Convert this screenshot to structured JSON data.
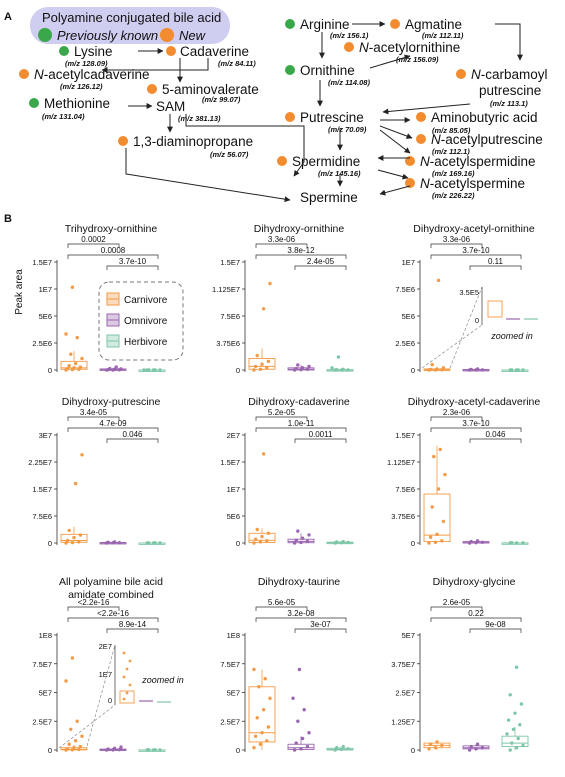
{
  "panel_a": {
    "letter": "A",
    "legend": {
      "title": "Polyamine conjugated bile acid",
      "known_label": "Previously known",
      "new_label": "New",
      "known_color": "#3aa84a",
      "new_color": "#f28c2e"
    },
    "nodes": [
      {
        "id": "lysine",
        "name": "Lysine",
        "mz": "(m/z 128.09)",
        "status": "known"
      },
      {
        "id": "cadaverine",
        "name": "Cadaverine",
        "mz": "(m/z 84.11)",
        "status": "new"
      },
      {
        "id": "acetylcadaverine",
        "name": "N-acetylcadaverine",
        "mz": "(m/z 126.12)",
        "status": "new"
      },
      {
        "id": "aminovalerate",
        "name": "5-aminovalerate",
        "mz": "(m/z 99.07)",
        "status": "new"
      },
      {
        "id": "methionine",
        "name": "Methionine",
        "mz": "(m/z 131.04)",
        "status": "known"
      },
      {
        "id": "sam",
        "name": "SAM",
        "mz": "(m/z 381.13)",
        "status": "none"
      },
      {
        "id": "diaminopropane",
        "name": "1,3-diaminopropane",
        "mz": "(m/z 56.07)",
        "status": "new"
      },
      {
        "id": "arginine",
        "name": "Arginine",
        "mz": "(m/z 156.1)",
        "status": "known"
      },
      {
        "id": "agmatine",
        "name": "Agmatine",
        "mz": "(m/z 112.11)",
        "status": "new"
      },
      {
        "id": "acetylornithine",
        "name": "N-acetylornithine",
        "mz": "(m/z 156.09)",
        "status": "new"
      },
      {
        "id": "ornithine",
        "name": "Ornithine",
        "mz": "(m/z 114.08)",
        "status": "known"
      },
      {
        "id": "carbamoyl",
        "name": "N-carbamoyl",
        "name2": "putrescine",
        "mz": "(m/z 113.1)",
        "status": "new"
      },
      {
        "id": "putrescine",
        "name": "Putrescine",
        "mz": "(m/z 70.09)",
        "status": "new"
      },
      {
        "id": "aminobutyric",
        "name": "Aminobutyric acid",
        "mz": "(m/z 85.05)",
        "status": "new"
      },
      {
        "id": "acetylputrescine",
        "name": "N-acetylputrescine",
        "mz": "(m/z 112.1)",
        "status": "new"
      },
      {
        "id": "spermidine",
        "name": "Spermidine",
        "mz": "(m/z 145.16)",
        "status": "new"
      },
      {
        "id": "acetylspermidine",
        "name": "N-acetylspermidine",
        "mz": "(m/z 169.16)",
        "status": "new"
      },
      {
        "id": "spermine",
        "name": "Spermine",
        "mz": "(m/z 226.22)",
        "status": "none"
      },
      {
        "id": "acetylspermine",
        "name": "N-acetylspermine",
        "mz": "(m/z 226.22)",
        "status": "new"
      }
    ]
  },
  "panel_b": {
    "letter": "B",
    "ylabel": "Peak area",
    "legend": [
      {
        "name": "Carnivore",
        "color": "#f39a45"
      },
      {
        "name": "Omnivore",
        "color": "#9b66b0"
      },
      {
        "name": "Herbivore",
        "color": "#7ec6a8"
      }
    ],
    "zoom_label": "zoomed in"
  },
  "chart_data": [
    {
      "type": "box",
      "title": "Trihydroxy-ornithine",
      "yticks": [
        "0",
        "2.5E6",
        "5E6",
        "1E7",
        "1.5E7"
      ],
      "ylim": [
        0,
        15000000
      ],
      "pvalues": [
        "0.0002",
        "0.0008",
        "3.7e-10"
      ],
      "series": [
        {
          "name": "Carnivore",
          "q1": 100000,
          "median": 300000,
          "q3": 1200000,
          "whisker_low": 0,
          "whisker_high": 2600000,
          "points": [
            0,
            50000,
            100000,
            200000,
            300000,
            400000,
            600000,
            900000,
            1600000,
            2200000,
            4500000,
            5000000,
            11500000
          ]
        },
        {
          "name": "Omnivore",
          "q1": 0,
          "median": 30000,
          "q3": 150000,
          "whisker_low": 0,
          "whisker_high": 300000,
          "points": [
            0,
            0,
            20000,
            50000,
            100000,
            150000,
            200000,
            400000
          ]
        },
        {
          "name": "Herbivore",
          "q1": 0,
          "median": 0,
          "q3": 0,
          "whisker_low": 0,
          "whisker_high": 0,
          "points": [
            0,
            0,
            0,
            0,
            0,
            0
          ]
        }
      ]
    },
    {
      "type": "box",
      "title": "Dihydroxy-ornithine",
      "yticks": [
        "0",
        "3.75E6",
        "7.5E6",
        "1.125E7",
        "1.5E7"
      ],
      "ylim": [
        0,
        15000000
      ],
      "pvalues": [
        "3.3e-06",
        "3.8e-12",
        "2.4e-05"
      ],
      "series": [
        {
          "name": "Carnivore",
          "q1": 100000,
          "median": 500000,
          "q3": 1600000,
          "whisker_low": 0,
          "whisker_high": 3000000,
          "points": [
            0,
            100000,
            300000,
            500000,
            800000,
            1200000,
            2000000,
            8500000,
            12000000
          ]
        },
        {
          "name": "Omnivore",
          "q1": 0,
          "median": 100000,
          "q3": 300000,
          "whisker_low": 0,
          "whisker_high": 700000,
          "points": [
            0,
            50000,
            100000,
            200000,
            300000,
            500000,
            700000
          ]
        },
        {
          "name": "Herbivore",
          "q1": 0,
          "median": 0,
          "q3": 50000,
          "whisker_low": 0,
          "whisker_high": 100000,
          "points": [
            0,
            0,
            0,
            50000,
            100000,
            300000,
            1800000
          ]
        }
      ]
    },
    {
      "type": "box",
      "title": "Dihydroxy-acetyl-ornithine",
      "yticks": [
        "0",
        "2.5E6",
        "5E6",
        "7.5E6",
        "1E7"
      ],
      "ylim": [
        0,
        10000000
      ],
      "pvalues": [
        "3.3e-06",
        "3.7e-10",
        "0.11"
      ],
      "series": [
        {
          "name": "Carnivore",
          "q1": 0,
          "median": 20000,
          "q3": 100000,
          "whisker_low": 0,
          "whisker_high": 200000,
          "points": [
            0,
            0,
            20000,
            50000,
            100000,
            200000,
            500000,
            8300000
          ]
        },
        {
          "name": "Omnivore",
          "q1": 0,
          "median": 10000,
          "q3": 50000,
          "whisker_low": 0,
          "whisker_high": 100000,
          "points": [
            0,
            0,
            10000,
            50000,
            100000
          ]
        },
        {
          "name": "Herbivore",
          "q1": 0,
          "median": 0,
          "q3": 0,
          "whisker_low": 0,
          "whisker_high": 0,
          "points": [
            0,
            0,
            0,
            0,
            0
          ]
        }
      ],
      "inset": {
        "ytick": "3.5E5",
        "label": "zoomed in"
      }
    },
    {
      "type": "box",
      "title": "Dihydroxy-putrescine",
      "yticks": [
        "0",
        "7.5E6",
        "1.5E7",
        "2.25E7",
        "3E7"
      ],
      "ylim": [
        0,
        30000000
      ],
      "pvalues": [
        "3.4e-05",
        "4.7e-09",
        "0.046"
      ],
      "series": [
        {
          "name": "Carnivore",
          "q1": 200000,
          "median": 700000,
          "q3": 2400000,
          "whisker_low": 0,
          "whisker_high": 4500000,
          "points": [
            0,
            100000,
            300000,
            700000,
            1500000,
            2200000,
            3500000,
            16500000,
            24500000
          ]
        },
        {
          "name": "Omnivore",
          "q1": 0,
          "median": 50000,
          "q3": 150000,
          "whisker_low": 0,
          "whisker_high": 300000,
          "points": [
            0,
            50000,
            100000,
            200000,
            300000
          ]
        },
        {
          "name": "Herbivore",
          "q1": 0,
          "median": 0,
          "q3": 20000,
          "whisker_low": 0,
          "whisker_high": 50000,
          "points": [
            0,
            0,
            0,
            20000,
            50000
          ]
        }
      ]
    },
    {
      "type": "box",
      "title": "Dihydroxy-cadaverine",
      "yticks": [
        "0",
        "5E6",
        "1E7",
        "1.5E7",
        "2E7"
      ],
      "ylim": [
        0,
        20000000
      ],
      "pvalues": [
        "5.2e-05",
        "1.0e-11",
        "0.0011"
      ],
      "series": [
        {
          "name": "Carnivore",
          "q1": 100000,
          "median": 500000,
          "q3": 1800000,
          "whisker_low": 0,
          "whisker_high": 2700000,
          "points": [
            0,
            200000,
            400000,
            700000,
            1200000,
            1800000,
            2500000,
            16500000
          ]
        },
        {
          "name": "Omnivore",
          "q1": 50000,
          "median": 300000,
          "q3": 700000,
          "whisker_low": 0,
          "whisker_high": 1800000,
          "points": [
            0,
            100000,
            300000,
            500000,
            900000,
            1500000,
            2200000
          ]
        },
        {
          "name": "Herbivore",
          "q1": 0,
          "median": 50000,
          "q3": 150000,
          "whisker_low": 0,
          "whisker_high": 250000,
          "points": [
            0,
            50000,
            100000,
            200000,
            250000
          ]
        }
      ]
    },
    {
      "type": "box",
      "title": "Dihydroxy-acetyl-cadaverine",
      "yticks": [
        "0",
        "3.75E6",
        "7.5E6",
        "1.125E7",
        "1.5E7"
      ],
      "ylim": [
        0,
        15000000
      ],
      "pvalues": [
        "2.3e-06",
        "3.7e-10",
        "0.046"
      ],
      "series": [
        {
          "name": "Carnivore",
          "q1": 200000,
          "median": 1100000,
          "q3": 6800000,
          "whisker_low": 0,
          "whisker_high": 13500000,
          "points": [
            0,
            100000,
            300000,
            800000,
            1200000,
            3000000,
            5000000,
            7500000,
            9500000,
            12000000,
            13000000
          ]
        },
        {
          "name": "Omnivore",
          "q1": 0,
          "median": 50000,
          "q3": 200000,
          "whisker_low": 0,
          "whisker_high": 300000,
          "points": [
            0,
            50000,
            100000,
            200000,
            300000
          ]
        },
        {
          "name": "Herbivore",
          "q1": 0,
          "median": 0,
          "q3": 20000,
          "whisker_low": 0,
          "whisker_high": 50000,
          "points": [
            0,
            0,
            20000,
            50000
          ]
        }
      ]
    },
    {
      "type": "box",
      "title": "All polyamine bile acid",
      "title2": "amidate combined",
      "yticks": [
        "0",
        "2.5E7",
        "5E7",
        "7.5E7",
        "1E8"
      ],
      "ylim": [
        0,
        100000000
      ],
      "pvalues": [
        "<2.2e-16",
        "<2.2e-16",
        "8.9e-14"
      ],
      "series": [
        {
          "name": "Carnivore",
          "q1": 100000,
          "median": 500000,
          "q3": 2000000,
          "whisker_low": 0,
          "whisker_high": 4500000,
          "points": [
            0,
            200000,
            500000,
            1000000,
            2000000,
            3000000,
            5000000,
            8000000,
            12000000,
            18000000,
            25000000,
            60000000,
            80000000
          ]
        },
        {
          "name": "Omnivore",
          "q1": 0,
          "median": 200000,
          "q3": 800000,
          "whisker_low": 0,
          "whisker_high": 2000000,
          "points": [
            0,
            100000,
            300000,
            800000,
            1500000,
            2500000
          ]
        },
        {
          "name": "Herbivore",
          "q1": 0,
          "median": 0,
          "q3": 100000,
          "whisker_low": 0,
          "whisker_high": 200000,
          "points": [
            0,
            0,
            50000,
            100000,
            200000
          ]
        }
      ],
      "inset": {
        "ytick_top": "2E7",
        "ytick_mid": "1E7",
        "label": "zoomed in"
      }
    },
    {
      "type": "box",
      "title": "Dihydroxy-taurine",
      "yticks": [
        "0",
        "2.5E7",
        "5E7",
        "7.5E7",
        "1E8"
      ],
      "ylim": [
        0,
        100000000
      ],
      "pvalues": [
        "5.6e-05",
        "3.2e-08",
        "3e-07"
      ],
      "series": [
        {
          "name": "Carnivore",
          "q1": 7000000,
          "median": 15000000,
          "q3": 55000000,
          "whisker_low": 0,
          "whisker_high": 70000000,
          "points": [
            2000000,
            5000000,
            8000000,
            12000000,
            15000000,
            20000000,
            28000000,
            35000000,
            45000000,
            55000000,
            62000000,
            70000000
          ]
        },
        {
          "name": "Omnivore",
          "q1": 500000,
          "median": 2000000,
          "q3": 5000000,
          "whisker_low": 0,
          "whisker_high": 12000000,
          "points": [
            0,
            1000000,
            3000000,
            6000000,
            10000000,
            15000000,
            25000000,
            35000000,
            45000000,
            70000000
          ]
        },
        {
          "name": "Herbivore",
          "q1": 0,
          "median": 500000,
          "q3": 1500000,
          "whisker_low": 0,
          "whisker_high": 3000000,
          "points": [
            0,
            500000,
            1000000,
            2000000,
            3000000
          ]
        }
      ]
    },
    {
      "type": "box",
      "title": "Dihydroxy-glycine",
      "yticks": [
        "0",
        "1.25E7",
        "2.5E7",
        "3.75E7",
        "5E7"
      ],
      "ylim": [
        0,
        50000000
      ],
      "pvalues": [
        "2.6e-05",
        "0.22",
        "9e-08"
      ],
      "series": [
        {
          "name": "Carnivore",
          "q1": 1000000,
          "median": 2000000,
          "q3": 3000000,
          "whisker_low": 0,
          "whisker_high": 4000000,
          "points": [
            500000,
            1000000,
            2000000,
            2500000,
            3500000
          ]
        },
        {
          "name": "Omnivore",
          "q1": 500000,
          "median": 1000000,
          "q3": 1800000,
          "whisker_low": 0,
          "whisker_high": 2500000,
          "points": [
            0,
            500000,
            1000000,
            1500000,
            2500000
          ]
        },
        {
          "name": "Herbivore",
          "q1": 1500000,
          "median": 3000000,
          "q3": 6000000,
          "whisker_low": 0,
          "whisker_high": 10000000,
          "points": [
            0,
            1000000,
            2000000,
            3000000,
            5000000,
            7000000,
            9000000,
            11000000,
            13000000,
            16000000,
            20000000,
            24000000,
            36000000
          ]
        }
      ]
    }
  ]
}
